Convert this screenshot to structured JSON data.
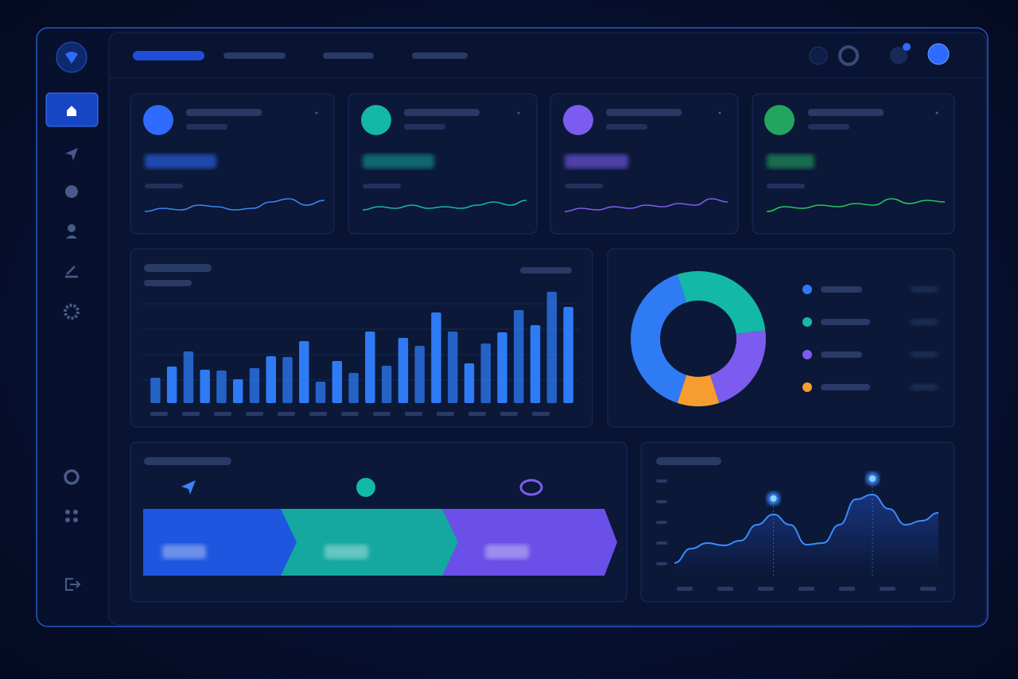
{
  "chart_data": [
    {
      "type": "spark",
      "color": "#3b82f6",
      "values": [
        8,
        10,
        9,
        12,
        11,
        9,
        10,
        14,
        16,
        12,
        15
      ]
    },
    {
      "type": "spark",
      "color": "#14b8a6",
      "values": [
        9,
        11,
        10,
        12,
        10,
        11,
        10,
        12,
        14,
        12,
        15
      ]
    },
    {
      "type": "spark",
      "color": "#7c5cf0",
      "values": [
        8,
        10,
        9,
        11,
        10,
        12,
        11,
        13,
        12,
        16,
        14
      ]
    },
    {
      "type": "spark",
      "color": "#22c55e",
      "values": [
        8,
        11,
        10,
        12,
        11,
        13,
        12,
        16,
        13,
        15,
        14
      ]
    },
    {
      "type": "bar",
      "color": "#2f7bf5",
      "values": [
        32,
        46,
        65,
        42,
        41,
        30,
        44,
        59,
        58,
        78,
        27,
        53,
        38,
        90,
        47,
        82,
        72,
        114,
        90,
        50,
        75,
        89,
        117,
        98,
        140,
        121
      ]
    },
    {
      "type": "pie",
      "values": [
        40,
        28,
        22,
        10
      ],
      "colors": [
        "#2f7bf5",
        "#14b8a6",
        "#7c5cf0",
        "#f59e2f"
      ]
    },
    {
      "type": "line",
      "color": "#3b8bff",
      "values": [
        12,
        30,
        37,
        34,
        40,
        60,
        73,
        60,
        35,
        37,
        60,
        92,
        98,
        80,
        60,
        65,
        75
      ]
    }
  ]
}
